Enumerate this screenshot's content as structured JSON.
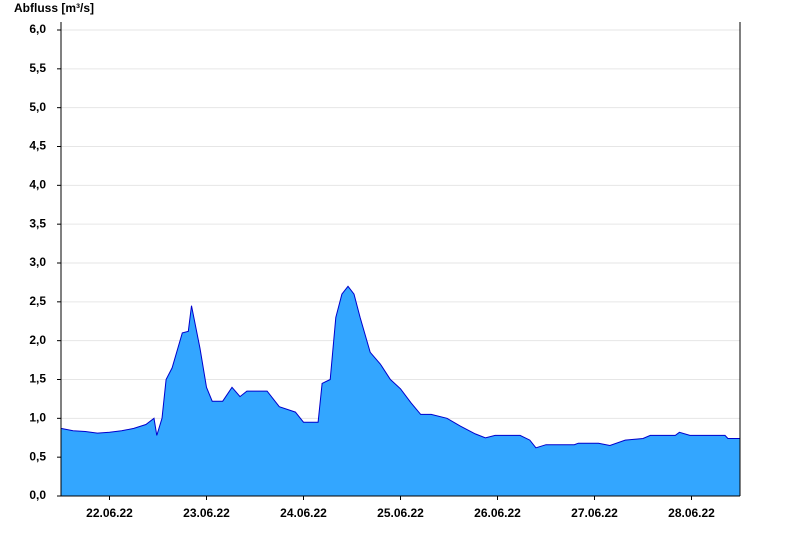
{
  "chart_data": {
    "type": "area",
    "y_label": "Abfluss [m³/s]",
    "color": "#33a6ff",
    "line_color": "#0000cc",
    "grid": true,
    "xlim": [
      0,
      168
    ],
    "xticks": [
      {
        "value": 12,
        "label": "22.06.22"
      },
      {
        "value": 36,
        "label": "23.06.22"
      },
      {
        "value": 60,
        "label": "24.06.22"
      },
      {
        "value": 84,
        "label": "25.06.22"
      },
      {
        "value": 108,
        "label": "26.06.22"
      },
      {
        "value": 132,
        "label": "27.06.22"
      },
      {
        "value": 156,
        "label": "28.06.22"
      }
    ],
    "ylim": [
      0,
      6
    ],
    "yticks": [
      {
        "value": 0,
        "label": "0,0"
      },
      {
        "value": 0.5,
        "label": "0,5"
      },
      {
        "value": 1,
        "label": "1,0"
      },
      {
        "value": 1.5,
        "label": "1,5"
      },
      {
        "value": 2,
        "label": "2,0"
      },
      {
        "value": 2.5,
        "label": "2,5"
      },
      {
        "value": 3,
        "label": "3,0"
      },
      {
        "value": 3.5,
        "label": "3,5"
      },
      {
        "value": 4,
        "label": "4,0"
      },
      {
        "value": 4.5,
        "label": "4,5"
      },
      {
        "value": 5,
        "label": "5,0"
      },
      {
        "value": 5.5,
        "label": "5,5"
      },
      {
        "value": 6,
        "label": "6,0"
      }
    ],
    "x": [
      0,
      3,
      6,
      9,
      12,
      15,
      18,
      21,
      23,
      23.7,
      25,
      26,
      27.5,
      30,
      31.5,
      32.3,
      34.4,
      36,
      37.4,
      40,
      42.3,
      44.3,
      46,
      48,
      51,
      54,
      58,
      60,
      63.6,
      64.6,
      66.6,
      68,
      69.5,
      71,
      72.5,
      74,
      76.5,
      79,
      81.5,
      84,
      86.6,
      89,
      91.6,
      95.5,
      98.8,
      102.5,
      105,
      107.4,
      113.6,
      116,
      117.5,
      120,
      127,
      128,
      133,
      135.8,
      139.6,
      144,
      145.8,
      152,
      153,
      155.6,
      164.3,
      165,
      168
    ],
    "values": [
      0.87,
      0.84,
      0.83,
      0.81,
      0.82,
      0.84,
      0.87,
      0.92,
      1.0,
      0.78,
      1.0,
      1.5,
      1.65,
      2.1,
      2.12,
      2.45,
      1.9,
      1.4,
      1.22,
      1.22,
      1.4,
      1.28,
      1.35,
      1.35,
      1.35,
      1.15,
      1.08,
      0.95,
      0.95,
      1.45,
      1.5,
      2.3,
      2.6,
      2.7,
      2.6,
      2.3,
      1.85,
      1.7,
      1.5,
      1.38,
      1.2,
      1.05,
      1.05,
      1.0,
      0.9,
      0.8,
      0.75,
      0.78,
      0.78,
      0.72,
      0.62,
      0.66,
      0.66,
      0.68,
      0.68,
      0.65,
      0.72,
      0.74,
      0.78,
      0.78,
      0.82,
      0.78,
      0.78,
      0.74,
      0.74
    ]
  }
}
